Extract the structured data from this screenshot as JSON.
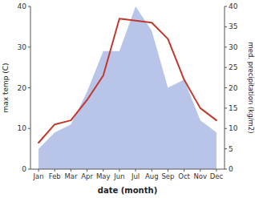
{
  "chart_data": {
    "type": "line",
    "categories": [
      "Jan",
      "Feb",
      "Mar",
      "Apr",
      "May",
      "Jun",
      "Jul",
      "Aug",
      "Sep",
      "Oct",
      "Nov",
      "Dec"
    ],
    "x_label": "date (month)",
    "y_label": "max temp (C)",
    "y2_label": "med. precipitation (kg/m2)",
    "series": [
      {
        "type": "area",
        "color": "#b8c4e8",
        "axis": "y2",
        "values": [
          5,
          9,
          11,
          19,
          29,
          29,
          40,
          34,
          20,
          22,
          12,
          9
        ]
      },
      {
        "type": "line",
        "color": "#c0392b",
        "values": [
          6.5,
          11,
          12,
          17,
          23,
          37,
          36.5,
          36,
          32,
          22,
          15,
          12
        ]
      }
    ],
    "ylim": [
      0,
      40
    ],
    "yticks": [
      0,
      10,
      20,
      30,
      40
    ],
    "y2lim": [
      0,
      40
    ],
    "y2ticks": [
      0,
      5,
      10,
      15,
      20,
      25,
      30,
      35,
      40
    ],
    "grid": false
  }
}
